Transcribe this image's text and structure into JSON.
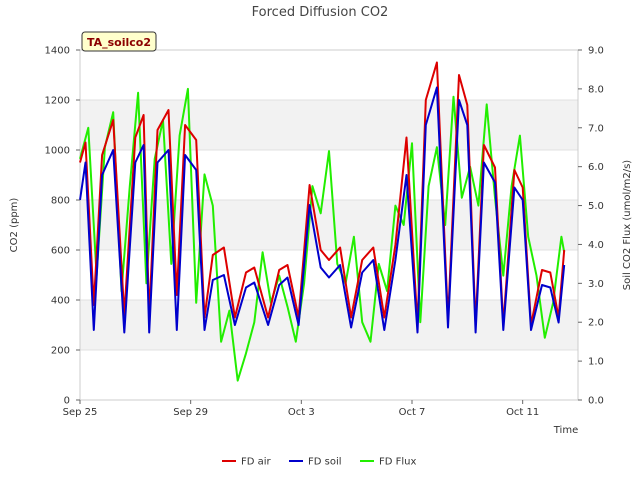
{
  "chart_data": {
    "type": "line",
    "title": "Forced Diffusion CO2",
    "xlabel": "Time",
    "ylabel_left": "CO2 (ppm)",
    "ylabel_right": "Soil CO2 Flux (umol/m2/s)",
    "tag": "TA_soilco2",
    "x_ticks": [
      "Sep 25",
      "Sep 29",
      "Oct 3",
      "Oct 7",
      "Oct 11"
    ],
    "x_tick_days": [
      0,
      4,
      8,
      12,
      16
    ],
    "xlim_days": [
      0,
      18
    ],
    "ylim_left": [
      0,
      1400
    ],
    "ylim_right": [
      0.0,
      9.0
    ],
    "y_left_ticks": [
      0,
      200,
      400,
      600,
      800,
      1000,
      1200,
      1400
    ],
    "y_right_ticks": [
      "0.0",
      "1.0",
      "2.0",
      "3.0",
      "4.0",
      "5.0",
      "6.0",
      "7.0",
      "8.0",
      "9.0"
    ],
    "legend": "bottom-center",
    "grid": "horizontal bands",
    "series": [
      {
        "name": "FD air",
        "color": "#dd0000",
        "axis": "left",
        "x": [
          0.0,
          0.2,
          0.5,
          0.8,
          1.2,
          1.6,
          2.0,
          2.3,
          2.5,
          2.8,
          3.2,
          3.5,
          3.8,
          4.2,
          4.5,
          4.8,
          5.2,
          5.6,
          6.0,
          6.3,
          6.8,
          7.2,
          7.5,
          7.9,
          8.3,
          8.7,
          9.0,
          9.4,
          9.8,
          10.2,
          10.6,
          11.0,
          11.4,
          11.8,
          12.2,
          12.5,
          12.9,
          13.3,
          13.7,
          14.0,
          14.3,
          14.6,
          15.0,
          15.3,
          15.7,
          16.0,
          16.3,
          16.7,
          17.0,
          17.3,
          17.5
        ],
        "y": [
          950,
          1030,
          380,
          980,
          1120,
          340,
          1050,
          1140,
          330,
          1080,
          1160,
          420,
          1100,
          1040,
          330,
          580,
          610,
          330,
          510,
          530,
          330,
          520,
          540,
          330,
          860,
          600,
          560,
          610,
          330,
          560,
          610,
          330,
          620,
          1050,
          300,
          1200,
          1350,
          320,
          1300,
          1180,
          300,
          1020,
          930,
          300,
          920,
          850,
          300,
          520,
          510,
          330,
          600
        ]
      },
      {
        "name": "FD soil",
        "color": "#0000cc",
        "axis": "left",
        "x": [
          0.0,
          0.2,
          0.5,
          0.8,
          1.2,
          1.6,
          2.0,
          2.3,
          2.5,
          2.8,
          3.2,
          3.5,
          3.8,
          4.2,
          4.5,
          4.8,
          5.2,
          5.6,
          6.0,
          6.3,
          6.8,
          7.2,
          7.5,
          7.9,
          8.3,
          8.7,
          9.0,
          9.4,
          9.8,
          10.2,
          10.6,
          11.0,
          11.4,
          11.8,
          12.2,
          12.5,
          12.9,
          13.3,
          13.7,
          14.0,
          14.3,
          14.6,
          15.0,
          15.3,
          15.7,
          16.0,
          16.3,
          16.7,
          17.0,
          17.3,
          17.5
        ],
        "y": [
          800,
          950,
          280,
          900,
          1000,
          270,
          950,
          1020,
          270,
          950,
          1000,
          280,
          980,
          920,
          280,
          480,
          500,
          300,
          450,
          470,
          300,
          460,
          490,
          300,
          780,
          530,
          490,
          540,
          290,
          510,
          560,
          280,
          560,
          900,
          270,
          1100,
          1250,
          290,
          1200,
          1100,
          270,
          950,
          870,
          280,
          850,
          800,
          280,
          460,
          450,
          310,
          540
        ]
      },
      {
        "name": "FD Flux",
        "color": "#22ee00",
        "axis": "right",
        "x": [
          0.0,
          0.3,
          0.6,
          0.9,
          1.2,
          1.5,
          1.8,
          2.1,
          2.4,
          2.7,
          3.0,
          3.3,
          3.6,
          3.9,
          4.2,
          4.5,
          4.8,
          5.1,
          5.4,
          5.7,
          6.0,
          6.3,
          6.6,
          6.9,
          7.2,
          7.5,
          7.8,
          8.1,
          8.4,
          8.7,
          9.0,
          9.3,
          9.6,
          9.9,
          10.2,
          10.5,
          10.8,
          11.1,
          11.4,
          11.7,
          12.0,
          12.3,
          12.6,
          12.9,
          13.2,
          13.5,
          13.8,
          14.1,
          14.4,
          14.7,
          15.0,
          15.3,
          15.6,
          15.9,
          16.2,
          16.5,
          16.8,
          17.1,
          17.4,
          17.5
        ],
        "y": [
          6.2,
          7.0,
          3.2,
          6.5,
          7.4,
          2.8,
          5.5,
          7.9,
          3.0,
          6.2,
          7.2,
          3.5,
          6.8,
          8.0,
          2.5,
          5.8,
          5.0,
          1.5,
          2.3,
          0.5,
          1.2,
          2.0,
          3.8,
          2.5,
          3.2,
          2.4,
          1.5,
          3.0,
          5.5,
          4.8,
          6.4,
          3.5,
          3.0,
          4.2,
          2.0,
          1.5,
          3.5,
          2.8,
          5.0,
          4.5,
          6.6,
          2.0,
          5.5,
          6.5,
          4.5,
          7.8,
          5.2,
          6.0,
          5.0,
          7.6,
          5.2,
          3.2,
          5.5,
          6.8,
          4.2,
          3.2,
          1.6,
          2.5,
          4.2,
          3.8
        ]
      }
    ]
  }
}
